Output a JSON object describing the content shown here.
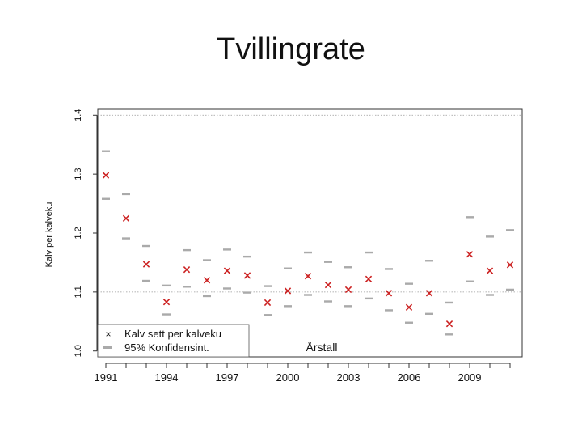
{
  "slide": {
    "title": "Tvillingrate"
  },
  "chart_data": {
    "type": "scatter",
    "title": "",
    "xlabel": "Årstall",
    "ylabel": "Kalv per kalveku",
    "x_ticks": [
      "1991",
      "1994",
      "1997",
      "2000",
      "2003",
      "2006",
      "2009"
    ],
    "y_ticks": [
      "1.0",
      "1.1",
      "1.2",
      "1.3",
      "1.4"
    ],
    "xlim": [
      1990.6,
      2011.6
    ],
    "ylim": [
      0.99,
      1.41
    ],
    "grid": "dotted horizontal at 1.1 and 1.4",
    "legend_position": "bottom-left",
    "colors": {
      "point": "#cc2222",
      "ci": "#aaaaaa",
      "axis": "#333333",
      "grid": "#999999"
    },
    "x": [
      1991,
      1992,
      1993,
      1994,
      1995,
      1996,
      1997,
      1998,
      1999,
      2000,
      2001,
      2002,
      2003,
      2004,
      2005,
      2006,
      2007,
      2008,
      2009,
      2010,
      2011
    ],
    "series": [
      {
        "name": "Kalv sett per kalveku",
        "marker": "x",
        "values": [
          1.298,
          1.225,
          1.147,
          1.083,
          1.138,
          1.12,
          1.136,
          1.128,
          1.082,
          1.102,
          1.127,
          1.112,
          1.104,
          1.122,
          1.098,
          1.074,
          1.098,
          1.046,
          1.164,
          1.136,
          1.146
        ]
      },
      {
        "name": "95% Konfidensint.",
        "marker": "dash",
        "upper": [
          1.339,
          1.266,
          1.178,
          1.111,
          1.171,
          1.154,
          1.172,
          1.16,
          1.11,
          1.14,
          1.167,
          1.151,
          1.142,
          1.167,
          1.139,
          1.114,
          1.153,
          1.082,
          1.227,
          1.194,
          1.205
        ],
        "lower": [
          1.258,
          1.191,
          1.119,
          1.062,
          1.109,
          1.093,
          1.106,
          1.099,
          1.061,
          1.076,
          1.095,
          1.084,
          1.076,
          1.089,
          1.069,
          1.048,
          1.063,
          1.028,
          1.118,
          1.095,
          1.104
        ]
      }
    ]
  }
}
